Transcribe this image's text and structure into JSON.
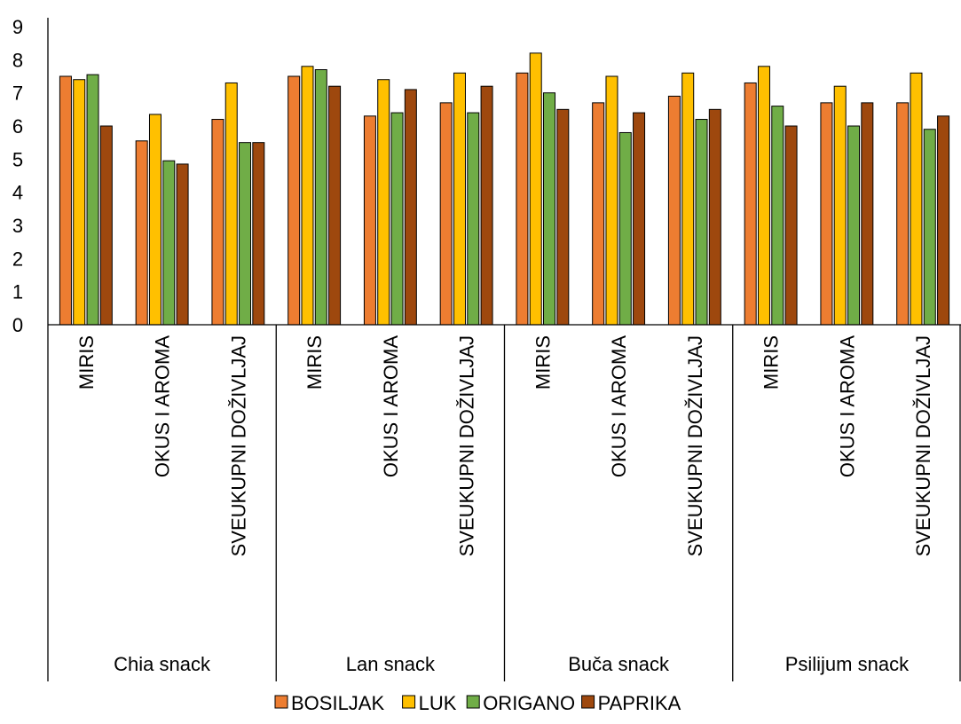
{
  "chart_data": {
    "type": "bar",
    "title": "",
    "xlabel": "",
    "ylabel": "",
    "ylim": [
      0,
      9
    ],
    "yticks": [
      0,
      1,
      2,
      3,
      4,
      5,
      6,
      7,
      8,
      9
    ],
    "grid": false,
    "legend_position": "bottom",
    "groups": [
      {
        "label": "Chia snack",
        "categories": [
          "MIRIS",
          "OKUS I AROMA",
          "SVEUKUPNI DOŽIVLJAJ"
        ]
      },
      {
        "label": "Lan snack",
        "categories": [
          "MIRIS",
          "OKUS I AROMA",
          "SVEUKUPNI DOŽIVLJAJ"
        ]
      },
      {
        "label": "Buča snack",
        "categories": [
          "MIRIS",
          "OKUS I AROMA",
          "SVEUKUPNI DOŽIVLJAJ"
        ]
      },
      {
        "label": "Psilijum snack",
        "categories": [
          "MIRIS",
          "OKUS I AROMA",
          "SVEUKUPNI DOŽIVLJAJ"
        ]
      }
    ],
    "series": [
      {
        "name": "BOSILJAK",
        "color": "#ED7D31",
        "values": [
          7.5,
          5.55,
          6.2,
          7.5,
          6.3,
          6.7,
          7.6,
          6.7,
          6.9,
          7.3,
          6.7,
          6.7
        ]
      },
      {
        "name": "LUK",
        "color": "#FFC000",
        "values": [
          7.4,
          6.35,
          7.3,
          7.8,
          7.4,
          7.6,
          8.2,
          7.5,
          7.6,
          7.8,
          7.2,
          7.6
        ]
      },
      {
        "name": "ORIGANO",
        "color": "#70AD47",
        "values": [
          7.55,
          4.95,
          5.5,
          7.7,
          6.4,
          6.4,
          7.0,
          5.8,
          6.2,
          6.6,
          6.0,
          5.9
        ]
      },
      {
        "name": "PAPRIKA",
        "color": "#9E480E",
        "values": [
          6.0,
          4.85,
          5.5,
          7.2,
          7.1,
          7.2,
          6.5,
          6.4,
          6.5,
          6.0,
          6.7,
          6.3
        ]
      }
    ]
  }
}
